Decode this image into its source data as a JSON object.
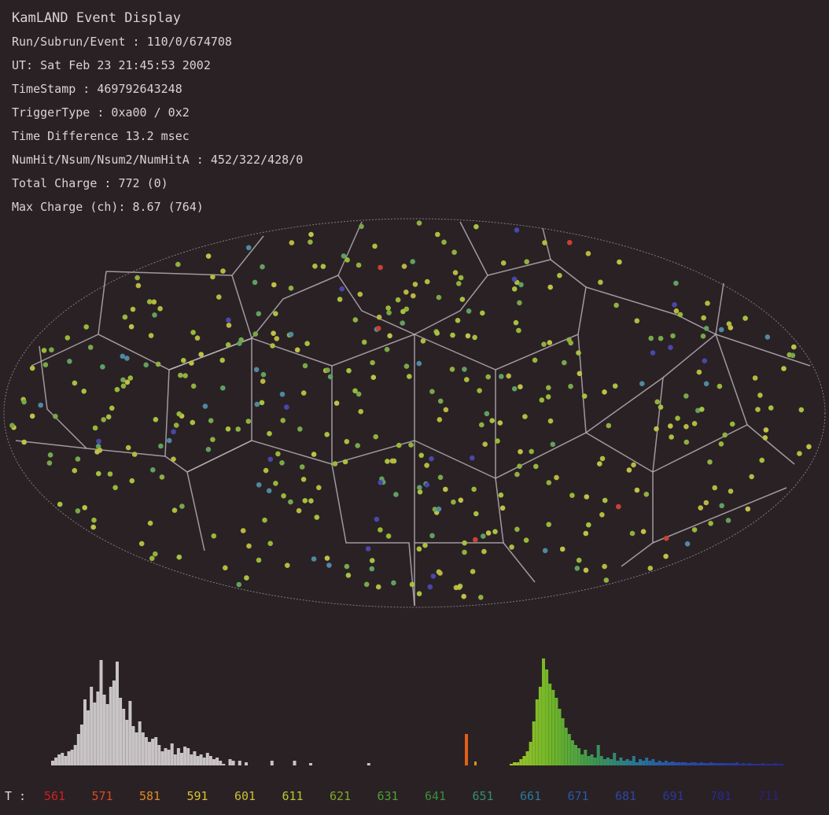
{
  "info": {
    "title": "KamLAND Event Display",
    "run_subrun_event": "Run/Subrun/Event : 110/0/674708",
    "ut": "UT: Sat Feb 23 21:45:53 2002",
    "timestamp": "TimeStamp : 469792643248",
    "trigger_type": "TriggerType : 0xa00 / 0x2",
    "time_difference": "Time Difference 13.2 msec",
    "numhit": "NumHit/Nsum/Nsum2/NumHitA : 452/322/428/0",
    "total_charge": "Total Charge : 772 (0)",
    "max_charge": "Max Charge (ch): 8.67 (764)"
  },
  "colors": {
    "background": "#2a2125",
    "grid": "#bdb8bc",
    "charge_hist": "#c8c4c6"
  },
  "time_axis": {
    "label": "T :",
    "ticks": [
      {
        "v": "561",
        "c": "#d02020"
      },
      {
        "v": "571",
        "c": "#d84a20"
      },
      {
        "v": "581",
        "c": "#e08a20"
      },
      {
        "v": "591",
        "c": "#d8c030"
      },
      {
        "v": "601",
        "c": "#c8c030"
      },
      {
        "v": "611",
        "c": "#b8c828"
      },
      {
        "v": "621",
        "c": "#80a828"
      },
      {
        "v": "631",
        "c": "#50a030"
      },
      {
        "v": "641",
        "c": "#389038"
      },
      {
        "v": "651",
        "c": "#30906a"
      },
      {
        "v": "661",
        "c": "#2a7a98"
      },
      {
        "v": "671",
        "c": "#2a58a8"
      },
      {
        "v": "681",
        "c": "#2a48a0"
      },
      {
        "v": "691",
        "c": "#2a3898"
      },
      {
        "v": "701",
        "c": "#2a2a90"
      },
      {
        "v": "711",
        "c": "#2a2478"
      }
    ]
  },
  "chart_data": [
    {
      "type": "bar",
      "description_key": "charge_histogram",
      "values": [
        6,
        10,
        14,
        16,
        12,
        18,
        20,
        26,
        40,
        52,
        84,
        70,
        100,
        80,
        94,
        134,
        90,
        78,
        100,
        108,
        132,
        86,
        72,
        58,
        82,
        50,
        42,
        56,
        42,
        36,
        30,
        34,
        36,
        26,
        18,
        22,
        20,
        28,
        14,
        22,
        16,
        24,
        22,
        14,
        18,
        12,
        14,
        10,
        16,
        12,
        8,
        10,
        6,
        2,
        0,
        8,
        6,
        0,
        6,
        0,
        4,
        0,
        0,
        0,
        0,
        0,
        0,
        0,
        6,
        0,
        0,
        0,
        0,
        0,
        0,
        6,
        0,
        0,
        0,
        0,
        3,
        0,
        0,
        0,
        0,
        0,
        0,
        0,
        0,
        0,
        0,
        0,
        0,
        0,
        0,
        0,
        0,
        0,
        3
      ]
    },
    {
      "type": "bar",
      "description_key": "time_histogram",
      "spike": {
        "at": 593,
        "value": 40
      },
      "values": [
        2,
        4,
        4,
        8,
        12,
        18,
        30,
        56,
        84,
        100,
        136,
        122,
        104,
        96,
        86,
        72,
        60,
        48,
        40,
        32,
        26,
        22,
        14,
        20,
        12,
        14,
        10,
        26,
        12,
        8,
        10,
        8,
        16,
        6,
        10,
        6,
        8,
        6,
        12,
        4,
        8,
        6,
        10,
        6,
        8,
        4,
        6,
        4,
        6,
        4,
        5,
        4,
        4,
        4,
        4,
        3,
        4,
        4,
        3,
        4,
        3,
        3,
        4,
        3,
        3,
        3,
        3,
        3,
        3,
        3,
        4,
        2,
        3,
        2,
        3,
        2,
        2,
        2,
        3,
        2,
        2,
        2,
        3,
        2,
        2
      ]
    }
  ]
}
